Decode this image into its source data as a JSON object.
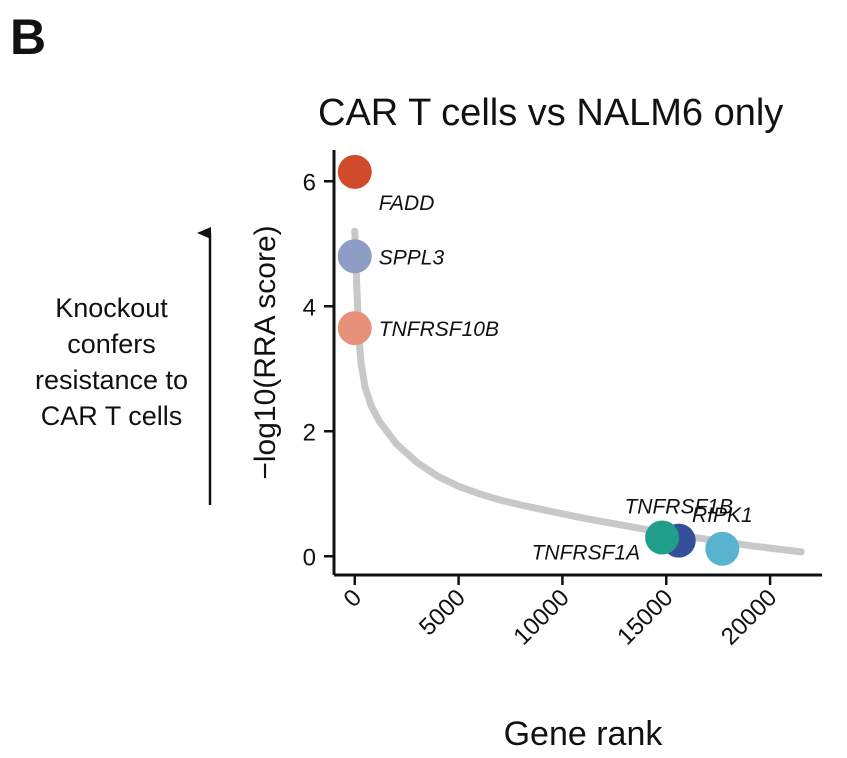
{
  "panel_label": "B",
  "annotation": {
    "lines": [
      "Knockout",
      "confers",
      "resistance to",
      "CAR T cells"
    ]
  },
  "chart_data": {
    "type": "scatter",
    "title": "CAR T cells vs NALM6 only",
    "xlabel": "Gene rank",
    "ylabel": "−log10(RRA score)",
    "xlim": [
      -1000,
      22500
    ],
    "ylim": [
      -0.3,
      6.5
    ],
    "x_ticks": [
      0,
      5000,
      10000,
      15000,
      20000
    ],
    "x_tick_labels": [
      "0",
      "5000",
      "10000",
      "15000",
      "20000"
    ],
    "y_ticks": [
      0,
      2,
      4,
      6
    ],
    "y_tick_labels": [
      "0",
      "2",
      "4",
      "6"
    ],
    "grid": false,
    "background_curve": {
      "color": "#c8c8c8",
      "x": [
        0,
        100,
        200,
        300,
        500,
        800,
        1200,
        2000,
        3000,
        4000,
        5000,
        6000,
        7000,
        8000,
        9000,
        10000,
        11000,
        12000,
        13000,
        14000,
        15000,
        16000,
        17000,
        18000,
        19000,
        20000,
        21000,
        21500
      ],
      "y": [
        5.2,
        4.3,
        3.5,
        3.1,
        2.7,
        2.4,
        2.15,
        1.8,
        1.5,
        1.28,
        1.12,
        1.0,
        0.9,
        0.82,
        0.75,
        0.68,
        0.61,
        0.55,
        0.49,
        0.43,
        0.37,
        0.32,
        0.27,
        0.22,
        0.17,
        0.13,
        0.09,
        0.07
      ]
    },
    "highlighted_genes": [
      {
        "name": "FADD",
        "x": 0,
        "y": 6.15,
        "color": "#d14a2b",
        "label_pos": "below-right"
      },
      {
        "name": "SPPL3",
        "x": 0,
        "y": 4.8,
        "color": "#8d9dc6",
        "label_pos": "right"
      },
      {
        "name": "TNFRSF10B",
        "x": 0,
        "y": 3.65,
        "color": "#e8917a",
        "label_pos": "right"
      },
      {
        "name": "TNFRSF1B",
        "x": 15600,
        "y": 0.25,
        "color": "#35509a",
        "label_pos": "above"
      },
      {
        "name": "TNFRSF1A",
        "x": 14800,
        "y": 0.3,
        "color": "#1f9e8a",
        "label_pos": "below-left"
      },
      {
        "name": "RIPK1",
        "x": 17700,
        "y": 0.12,
        "color": "#5ab4cf",
        "label_pos": "above"
      }
    ]
  }
}
